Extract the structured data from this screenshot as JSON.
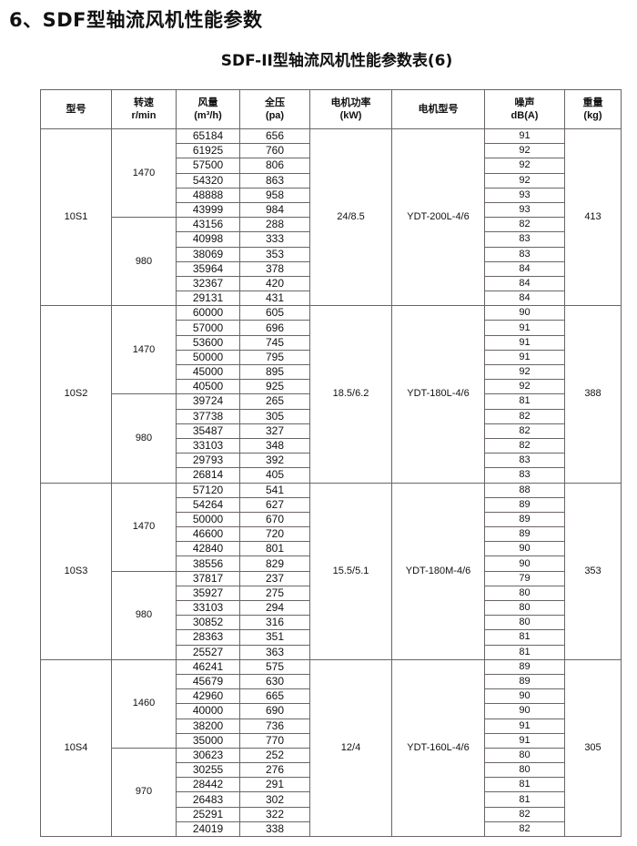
{
  "heading": "6、SDF型轴流风机性能参数",
  "table_title": "SDF-II型轴流风机性能参数表(6)",
  "columns": [
    {
      "label": "型号",
      "unit": ""
    },
    {
      "label": "转速",
      "unit": "r/min"
    },
    {
      "label": "风量",
      "unit": "(m³/h)"
    },
    {
      "label": "全压",
      "unit": "(pa)"
    },
    {
      "label": "电机功率",
      "unit": "(kW)"
    },
    {
      "label": "电机型号",
      "unit": ""
    },
    {
      "label": "噪声",
      "unit": "dB(A)"
    },
    {
      "label": "重量",
      "unit": "(kg)"
    }
  ],
  "models": [
    {
      "model": "10S1",
      "power": "24/8.5",
      "motor": "YDT-200L-4/6",
      "weight": "413",
      "groups": [
        {
          "speed": "1470",
          "rows": [
            [
              "65184",
              "656",
              "91"
            ],
            [
              "61925",
              "760",
              "92"
            ],
            [
              "57500",
              "806",
              "92"
            ],
            [
              "54320",
              "863",
              "92"
            ],
            [
              "48888",
              "958",
              "93"
            ],
            [
              "43999",
              "984",
              "93"
            ]
          ]
        },
        {
          "speed": "980",
          "rows": [
            [
              "43156",
              "288",
              "82"
            ],
            [
              "40998",
              "333",
              "83"
            ],
            [
              "38069",
              "353",
              "83"
            ],
            [
              "35964",
              "378",
              "84"
            ],
            [
              "32367",
              "420",
              "84"
            ],
            [
              "29131",
              "431",
              "84"
            ]
          ]
        }
      ]
    },
    {
      "model": "10S2",
      "power": "18.5/6.2",
      "motor": "YDT-180L-4/6",
      "weight": "388",
      "groups": [
        {
          "speed": "1470",
          "rows": [
            [
              "60000",
              "605",
              "90"
            ],
            [
              "57000",
              "696",
              "91"
            ],
            [
              "53600",
              "745",
              "91"
            ],
            [
              "50000",
              "795",
              "91"
            ],
            [
              "45000",
              "895",
              "92"
            ],
            [
              "40500",
              "925",
              "92"
            ]
          ]
        },
        {
          "speed": "980",
          "rows": [
            [
              "39724",
              "265",
              "81"
            ],
            [
              "37738",
              "305",
              "82"
            ],
            [
              "35487",
              "327",
              "82"
            ],
            [
              "33103",
              "348",
              "82"
            ],
            [
              "29793",
              "392",
              "83"
            ],
            [
              "26814",
              "405",
              "83"
            ]
          ]
        }
      ]
    },
    {
      "model": "10S3",
      "power": "15.5/5.1",
      "motor": "YDT-180M-4/6",
      "weight": "353",
      "groups": [
        {
          "speed": "1470",
          "rows": [
            [
              "57120",
              "541",
              "88"
            ],
            [
              "54264",
              "627",
              "89"
            ],
            [
              "50000",
              "670",
              "89"
            ],
            [
              "46600",
              "720",
              "89"
            ],
            [
              "42840",
              "801",
              "90"
            ],
            [
              "38556",
              "829",
              "90"
            ]
          ]
        },
        {
          "speed": "980",
          "rows": [
            [
              "37817",
              "237",
              "79"
            ],
            [
              "35927",
              "275",
              "80"
            ],
            [
              "33103",
              "294",
              "80"
            ],
            [
              "30852",
              "316",
              "80"
            ],
            [
              "28363",
              "351",
              "81"
            ],
            [
              "25527",
              "363",
              "81"
            ]
          ]
        }
      ]
    },
    {
      "model": "10S4",
      "power": "12/4",
      "motor": "YDT-160L-4/6",
      "weight": "305",
      "groups": [
        {
          "speed": "1460",
          "rows": [
            [
              "46241",
              "575",
              "89"
            ],
            [
              "45679",
              "630",
              "89"
            ],
            [
              "42960",
              "665",
              "90"
            ],
            [
              "40000",
              "690",
              "90"
            ],
            [
              "38200",
              "736",
              "91"
            ],
            [
              "35000",
              "770",
              "91"
            ]
          ]
        },
        {
          "speed": "970",
          "rows": [
            [
              "30623",
              "252",
              "80"
            ],
            [
              "30255",
              "276",
              "80"
            ],
            [
              "28442",
              "291",
              "81"
            ],
            [
              "26483",
              "302",
              "81"
            ],
            [
              "25291",
              "322",
              "82"
            ],
            [
              "24019",
              "338",
              "82"
            ]
          ]
        }
      ]
    }
  ]
}
